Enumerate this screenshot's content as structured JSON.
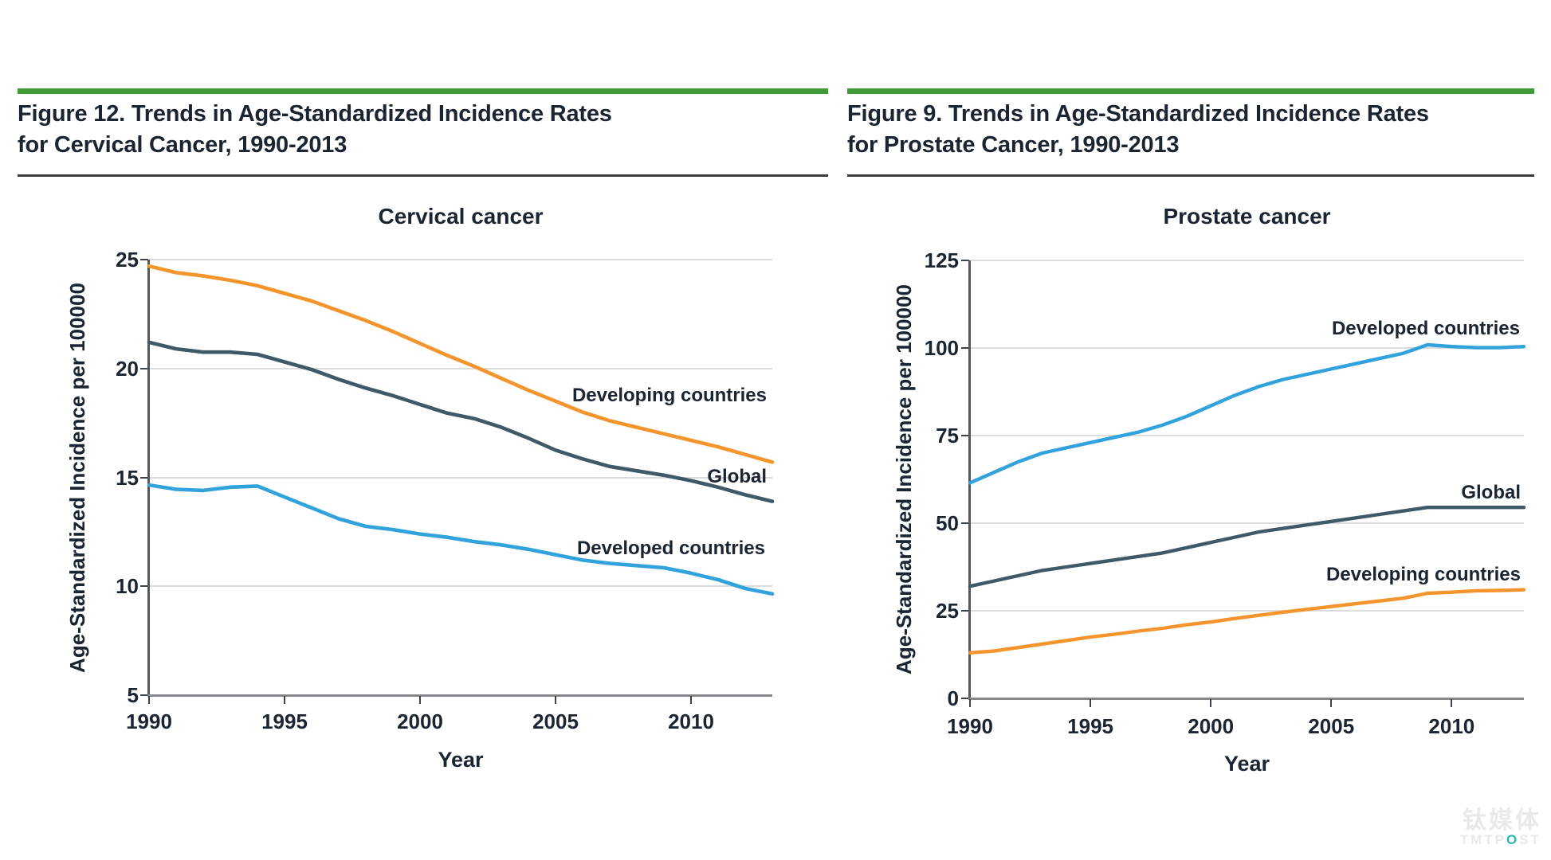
{
  "figures": [
    {
      "line1": "Figure 12. Trends in Age-Standardized Incidence Rates",
      "line2": "for Cervical Cancer, 1990-2013"
    },
    {
      "line1": "Figure 9. Trends in Age-Standardized Incidence Rates",
      "line2": "for Prostate Cancer, 1990-2013"
    }
  ],
  "colors": {
    "header_bar": "#3f9b37",
    "developing": "#f4942c",
    "global": "#3f5968",
    "developed": "#31a2db"
  },
  "chart_data": [
    {
      "type": "line",
      "title": "Cervical cancer",
      "xlabel": "Year",
      "ylabel": "Age-Standardized Incidence per 100000",
      "ylim": [
        5,
        25
      ],
      "yticks": [
        25,
        20,
        15,
        10,
        5
      ],
      "xticks": [
        1990,
        1995,
        2000,
        2005,
        2010
      ],
      "x": [
        1990,
        1991,
        1992,
        1993,
        1994,
        1995,
        1996,
        1997,
        1998,
        1999,
        2000,
        2001,
        2002,
        2003,
        2004,
        2005,
        2006,
        2007,
        2008,
        2009,
        2010,
        2011,
        2012,
        2013
      ],
      "series": [
        {
          "name": "Developing countries",
          "color": "#f4942c",
          "values": [
            24.7,
            24.4,
            24.25,
            24.05,
            23.8,
            23.45,
            23.1,
            22.65,
            22.2,
            21.7,
            21.15,
            20.6,
            20.1,
            19.55,
            19.0,
            18.5,
            18.0,
            17.6,
            17.3,
            17.0,
            16.7,
            16.4,
            16.05,
            15.7
          ]
        },
        {
          "name": "Global",
          "color": "#3f5968",
          "values": [
            21.2,
            20.9,
            20.75,
            20.75,
            20.65,
            20.3,
            19.95,
            19.5,
            19.1,
            18.75,
            18.35,
            17.95,
            17.7,
            17.3,
            16.8,
            16.25,
            15.85,
            15.5,
            15.3,
            15.1,
            14.85,
            14.55,
            14.2,
            13.9
          ]
        },
        {
          "name": "Developed countries",
          "color": "#31a2db",
          "values": [
            14.65,
            14.45,
            14.4,
            14.55,
            14.6,
            14.1,
            13.6,
            13.1,
            12.75,
            12.6,
            12.4,
            12.25,
            12.05,
            11.9,
            11.7,
            11.45,
            11.2,
            11.05,
            10.95,
            10.85,
            10.6,
            10.3,
            9.9,
            9.65
          ]
        }
      ],
      "annotations": [
        {
          "text": "Developing countries"
        },
        {
          "text": "Global"
        },
        {
          "text": "Developed countries"
        }
      ]
    },
    {
      "type": "line",
      "title": "Prostate cancer",
      "xlabel": "Year",
      "ylabel": "Age-Standardized Incidence per 100000",
      "ylim": [
        0,
        125
      ],
      "yticks": [
        125,
        100,
        75,
        50,
        25,
        0
      ],
      "xticks": [
        1990,
        1995,
        2000,
        2005,
        2010
      ],
      "x": [
        1990,
        1991,
        1992,
        1993,
        1994,
        1995,
        1996,
        1997,
        1998,
        1999,
        2000,
        2001,
        2002,
        2003,
        2004,
        2005,
        2006,
        2007,
        2008,
        2009,
        2010,
        2011,
        2012,
        2013
      ],
      "series": [
        {
          "name": "Developed countries",
          "color": "#31a2db",
          "values": [
            61.5,
            64.5,
            67.5,
            70,
            71.5,
            73,
            74.5,
            76,
            78,
            80.5,
            83.5,
            86.5,
            89,
            91,
            92.5,
            94,
            95.5,
            97,
            98.5,
            100.9,
            100.4,
            100.1,
            100.1,
            100.4
          ]
        },
        {
          "name": "Global",
          "color": "#3f5968",
          "values": [
            32,
            33.5,
            35,
            36.5,
            37.5,
            38.5,
            39.5,
            40.5,
            41.5,
            43,
            44.5,
            46,
            47.5,
            48.5,
            49.5,
            50.5,
            51.5,
            52.5,
            53.5,
            54.5,
            54.5,
            54.5,
            54.5,
            54.5
          ]
        },
        {
          "name": "Developing countries",
          "color": "#f4942c",
          "values": [
            13,
            13.5,
            14.5,
            15.5,
            16.5,
            17.5,
            18.3,
            19.2,
            20,
            21,
            21.8,
            22.8,
            23.7,
            24.6,
            25.4,
            26.2,
            27,
            27.8,
            28.6,
            30,
            30.3,
            30.7,
            30.8,
            31
          ]
        }
      ],
      "annotations": [
        {
          "text": "Developed countries"
        },
        {
          "text": "Global"
        },
        {
          "text": "Developing countries"
        }
      ]
    }
  ],
  "watermark": {
    "line1": "钛媒体",
    "en_pre": "TMTP",
    "en_o": "O",
    "en_post": "ST"
  }
}
